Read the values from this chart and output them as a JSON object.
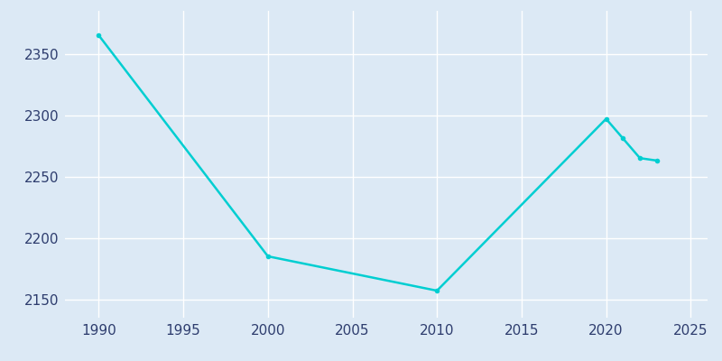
{
  "years": [
    1990,
    2000,
    2010,
    2020,
    2021,
    2022,
    2023
  ],
  "population": [
    2365,
    2185,
    2157,
    2297,
    2281,
    2265,
    2263
  ],
  "line_color": "#00CED1",
  "marker_color": "#00CED1",
  "bg_color": "#dce9f5",
  "outer_bg_color": "#dce9f5",
  "grid_color": "#ffffff",
  "text_color": "#2e3d6e",
  "xlim": [
    1988,
    2026
  ],
  "ylim": [
    2135,
    2385
  ],
  "xticks": [
    1990,
    1995,
    2000,
    2005,
    2010,
    2015,
    2020,
    2025
  ],
  "yticks": [
    2150,
    2200,
    2250,
    2300,
    2350
  ],
  "marker_size": 4,
  "line_width": 1.8
}
